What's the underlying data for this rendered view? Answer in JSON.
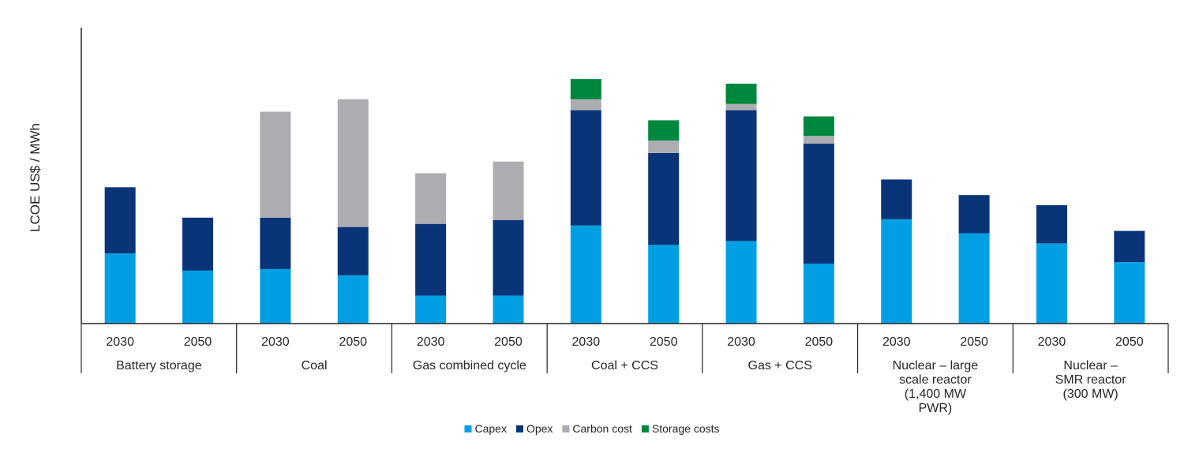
{
  "chart_data": {
    "type": "bar",
    "stacked": true,
    "ylabel": "LCOE US$ / MWh",
    "xlabel": "",
    "title": "",
    "groups": [
      {
        "name": "Battery storage",
        "name_lines": [
          "Battery storage"
        ],
        "years": [
          "2030",
          "2050"
        ]
      },
      {
        "name": "Coal",
        "name_lines": [
          "Coal"
        ],
        "years": [
          "2030",
          "2050"
        ]
      },
      {
        "name": "Gas combined cycle",
        "name_lines": [
          "Gas combined cycle"
        ],
        "years": [
          "2030",
          "2050"
        ]
      },
      {
        "name": "Coal + CCS",
        "name_lines": [
          "Coal + CCS"
        ],
        "years": [
          "2030",
          "2050"
        ]
      },
      {
        "name": "Gas + CCS",
        "name_lines": [
          "Gas + CCS"
        ],
        "years": [
          "2030",
          "2050"
        ]
      },
      {
        "name": "Nuclear – large scale reactor (1,400 MW PWR)",
        "name_lines": [
          "Nuclear – large",
          "scale reactor",
          "(1,400 MW",
          "PWR)"
        ],
        "years": [
          "2030",
          "2050"
        ]
      },
      {
        "name": "Nuclear – SMR reactor (300 MW)",
        "name_lines": [
          "Nuclear –",
          "SMR reactor",
          "(300 MW)"
        ],
        "years": [
          "2030",
          "2050"
        ]
      }
    ],
    "categories": [
      "Battery storage 2030",
      "Battery storage 2050",
      "Coal 2030",
      "Coal 2050",
      "Gas combined cycle 2030",
      "Gas combined cycle 2050",
      "Coal + CCS 2030",
      "Coal + CCS 2050",
      "Gas + CCS 2030",
      "Gas + CCS 2050",
      "Nuclear – large scale reactor 2030",
      "Nuclear – large scale reactor 2050",
      "Nuclear – SMR reactor 2030",
      "Nuclear – SMR reactor 2050"
    ],
    "series": [
      {
        "name": "Capex",
        "color": "#009FE3",
        "values": [
          90,
          68,
          70,
          62,
          36,
          36,
          126,
          101,
          106,
          77,
          134,
          116,
          103,
          79
        ]
      },
      {
        "name": "Opex",
        "color": "#0A3478",
        "values": [
          85,
          68,
          66,
          62,
          92,
          97,
          148,
          118,
          168,
          154,
          51,
          49,
          49,
          40
        ]
      },
      {
        "name": "Carbon cost",
        "color": "#ABADB1",
        "values": [
          0,
          0,
          136,
          164,
          65,
          75,
          14,
          16,
          8,
          10,
          0,
          0,
          0,
          0
        ]
      },
      {
        "name": "Storage costs",
        "color": "#00873E",
        "values": [
          0,
          0,
          0,
          0,
          0,
          0,
          26,
          26,
          26,
          25,
          0,
          0,
          0,
          0
        ]
      }
    ],
    "ylim": [
      0,
      380
    ],
    "y_axis_ticks": "none",
    "grid": false,
    "legend_position": "bottom"
  }
}
